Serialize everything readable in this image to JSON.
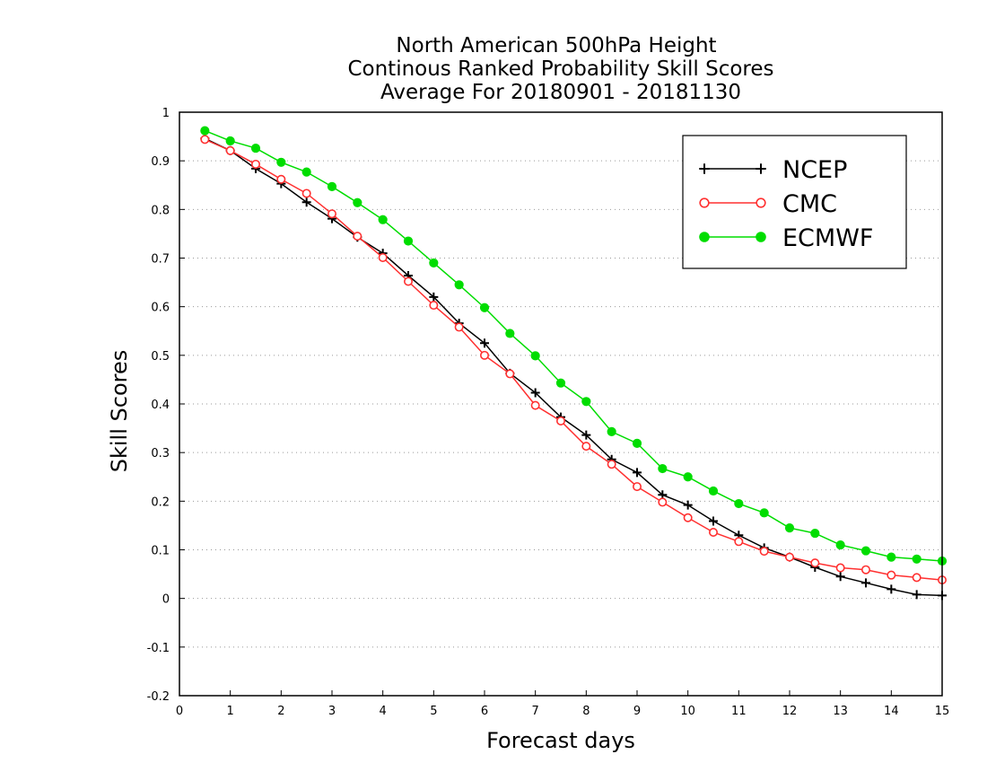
{
  "chart_data": {
    "type": "line",
    "title_lines": [
      "North American 500hPa Height",
      "Continous Ranked Probability Skill Scores",
      "Average For 20180901 - 20181130"
    ],
    "xlabel": "Forecast days",
    "ylabel": "Skill Scores",
    "xlim": [
      0,
      15
    ],
    "ylim": [
      -0.2,
      1
    ],
    "x_ticks": [
      0,
      1,
      2,
      3,
      4,
      5,
      6,
      7,
      8,
      9,
      10,
      11,
      12,
      13,
      14,
      15
    ],
    "y_ticks": [
      -0.2,
      -0.1,
      0,
      0.1,
      0.2,
      0.3,
      0.4,
      0.5,
      0.6,
      0.7,
      0.8,
      0.9,
      1
    ],
    "y_tick_labels": [
      "-0.2",
      "-0.1",
      "0",
      "0.1",
      "0.2",
      "0.3",
      "0.4",
      "0.5",
      "0.6",
      "0.7",
      "0.8",
      "0.9",
      "1"
    ],
    "grid": "horizontal dotted",
    "legend_position": "top-right",
    "x": [
      0.5,
      1,
      1.5,
      2,
      2.5,
      3,
      3.5,
      4,
      4.5,
      5,
      5.5,
      6,
      6.5,
      7,
      7.5,
      8,
      8.5,
      9,
      9.5,
      10,
      10.5,
      11,
      11.5,
      12,
      12.5,
      13,
      13.5,
      14,
      14.5,
      15
    ],
    "series": [
      {
        "name": "NCEP",
        "color": "#000000",
        "marker": "plus",
        "values": [
          0.946,
          0.921,
          0.884,
          0.853,
          0.815,
          0.781,
          0.743,
          0.71,
          0.664,
          0.62,
          0.566,
          0.525,
          0.463,
          0.423,
          0.373,
          0.336,
          0.286,
          0.259,
          0.213,
          0.192,
          0.159,
          0.13,
          0.104,
          0.085,
          0.064,
          0.045,
          0.032,
          0.019,
          0.008,
          0.006
        ]
      },
      {
        "name": "CMC",
        "color": "#ff3030",
        "marker": "open-circle",
        "values": [
          0.944,
          0.921,
          0.893,
          0.862,
          0.833,
          0.791,
          0.745,
          0.701,
          0.652,
          0.603,
          0.558,
          0.5,
          0.462,
          0.397,
          0.365,
          0.313,
          0.276,
          0.23,
          0.198,
          0.166,
          0.136,
          0.117,
          0.097,
          0.085,
          0.073,
          0.063,
          0.059,
          0.048,
          0.043,
          0.038
        ]
      },
      {
        "name": "ECMWF",
        "color": "#00dd00",
        "marker": "filled-circle",
        "values": [
          0.962,
          0.941,
          0.926,
          0.897,
          0.877,
          0.847,
          0.814,
          0.779,
          0.735,
          0.69,
          0.645,
          0.598,
          0.545,
          0.499,
          0.443,
          0.405,
          0.343,
          0.319,
          0.267,
          0.25,
          0.221,
          0.195,
          0.176,
          0.145,
          0.134,
          0.11,
          0.098,
          0.085,
          0.081,
          0.077
        ]
      }
    ]
  }
}
